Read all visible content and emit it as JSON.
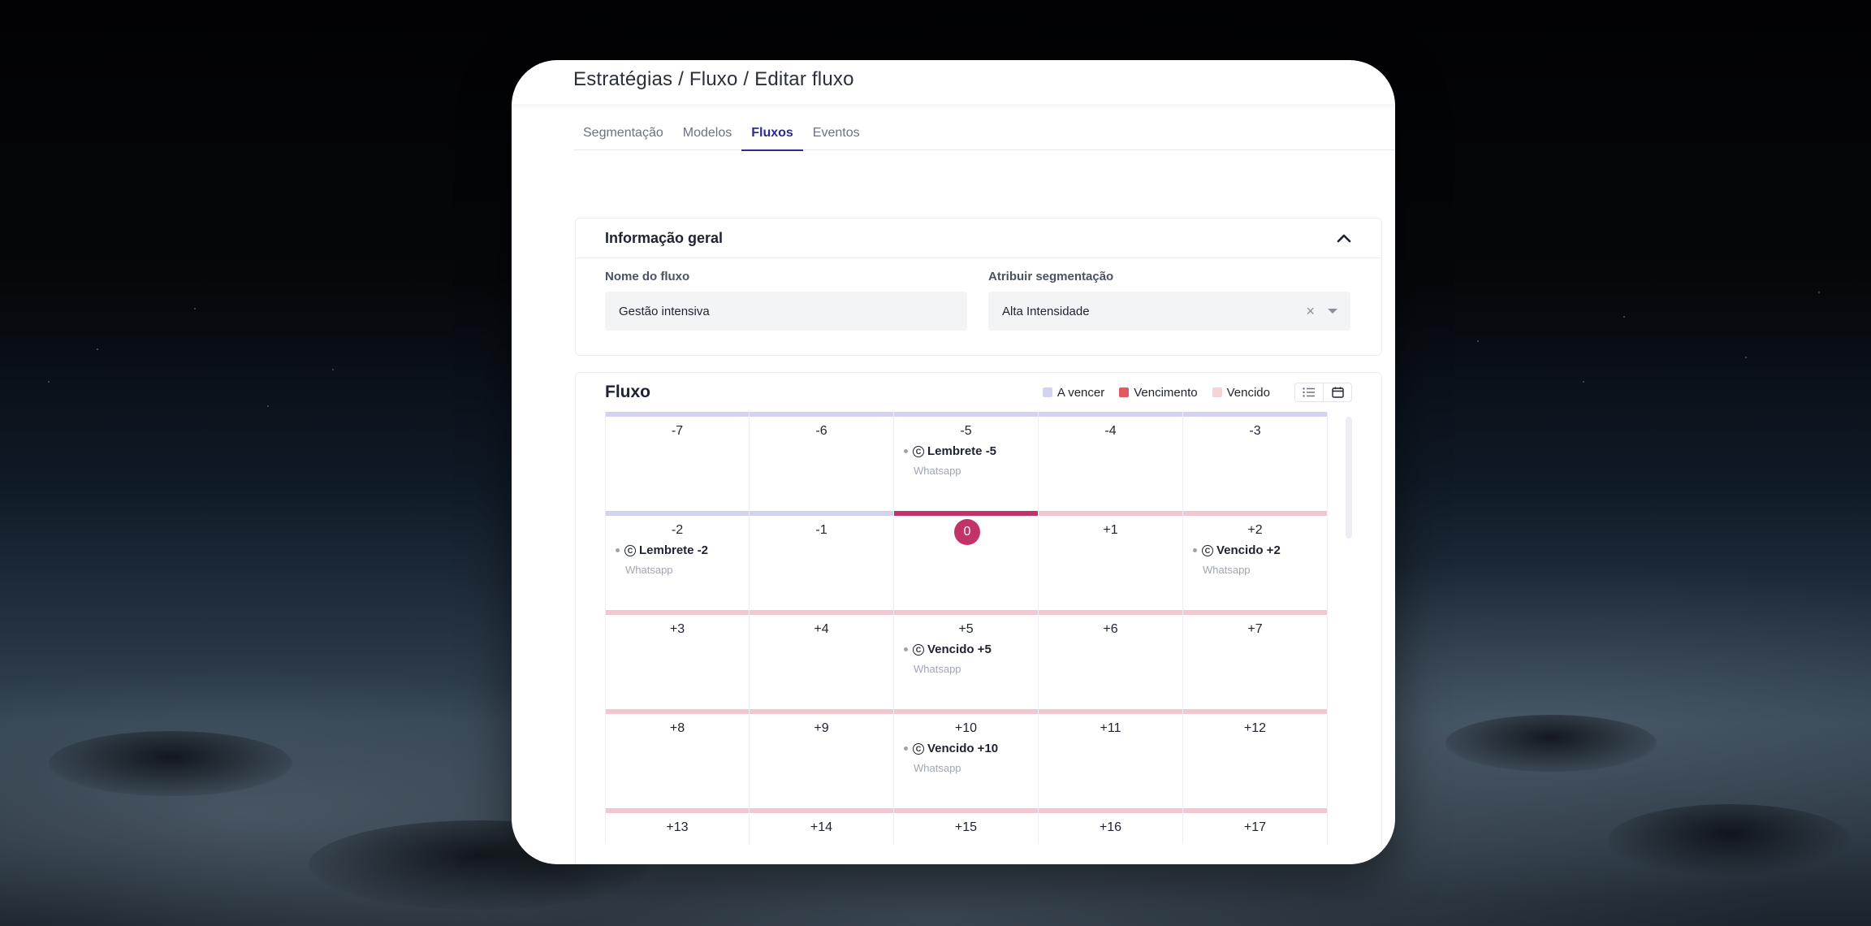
{
  "breadcrumb": "Estratégias / Fluxo / Editar fluxo",
  "tabs": [
    {
      "label": "Segmentação",
      "active": false
    },
    {
      "label": "Modelos",
      "active": false
    },
    {
      "label": "Fluxos",
      "active": true
    },
    {
      "label": "Eventos",
      "active": false
    }
  ],
  "info_panel": {
    "title": "Informação geral",
    "name_label": "Nome do fluxo",
    "name_value": "Gestão intensiva",
    "segment_label": "Atribuir segmentação",
    "segment_value": "Alta Intensidade",
    "clear_symbol": "×"
  },
  "flow": {
    "title": "Fluxo",
    "legend": [
      {
        "label": "A vencer",
        "color": "#d4d3ef"
      },
      {
        "label": "Vencimento",
        "color": "#e15a62"
      },
      {
        "label": "Vencido",
        "color": "#f6d3d7"
      }
    ],
    "colors": {
      "a_vencer": "#d4d3ef",
      "vencimento": "#c2336a",
      "vencido": "#f3c7d2"
    },
    "rows": [
      [
        {
          "day": "-7",
          "type": "a_vencer"
        },
        {
          "day": "-6",
          "type": "a_vencer"
        },
        {
          "day": "-5",
          "type": "a_vencer",
          "event": "Lembrete -5",
          "channel": "Whatsapp"
        },
        {
          "day": "-4",
          "type": "a_vencer"
        },
        {
          "day": "-3",
          "type": "a_vencer"
        }
      ],
      [
        {
          "day": "-2",
          "type": "a_vencer",
          "event": "Lembrete -2",
          "channel": "Whatsapp"
        },
        {
          "day": "-1",
          "type": "a_vencer"
        },
        {
          "day": "0",
          "type": "vencimento"
        },
        {
          "day": "+1",
          "type": "vencido"
        },
        {
          "day": "+2",
          "type": "vencido",
          "event": "Vencido +2",
          "channel": "Whatsapp"
        }
      ],
      [
        {
          "day": "+3",
          "type": "vencido"
        },
        {
          "day": "+4",
          "type": "vencido"
        },
        {
          "day": "+5",
          "type": "vencido",
          "event": "Vencido +5",
          "channel": "Whatsapp"
        },
        {
          "day": "+6",
          "type": "vencido"
        },
        {
          "day": "+7",
          "type": "vencido"
        }
      ],
      [
        {
          "day": "+8",
          "type": "vencido"
        },
        {
          "day": "+9",
          "type": "vencido"
        },
        {
          "day": "+10",
          "type": "vencido",
          "event": "Vencido +10",
          "channel": "Whatsapp"
        },
        {
          "day": "+11",
          "type": "vencido"
        },
        {
          "day": "+12",
          "type": "vencido"
        }
      ],
      [
        {
          "day": "+13",
          "type": "vencido"
        },
        {
          "day": "+14",
          "type": "vencido"
        },
        {
          "day": "+15",
          "type": "vencido"
        },
        {
          "day": "+16",
          "type": "vencido"
        },
        {
          "day": "+17",
          "type": "vencido"
        }
      ]
    ]
  }
}
